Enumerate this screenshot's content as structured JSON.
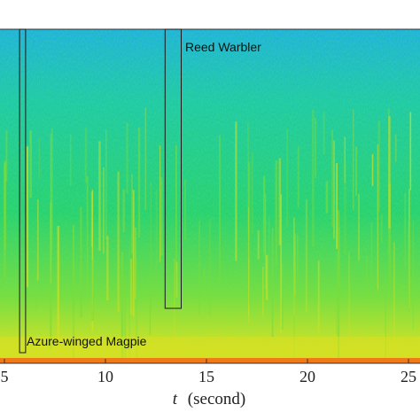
{
  "chart_data": {
    "type": "heatmap",
    "title": "",
    "xlabel": {
      "symbol": "t",
      "unit": "(second)"
    },
    "ylabel": "",
    "xlim": [
      5,
      25.8
    ],
    "xticks": [
      5,
      10,
      15,
      20,
      25
    ],
    "xtick_labels": [
      "5",
      "10",
      "15",
      "20",
      "25"
    ],
    "colors": {
      "high_band": "#1eb0e0",
      "upper_mid": "#1ec8a8",
      "mid": "#28d070",
      "lower_mid": "#7adc3c",
      "bottom_energy": "#d8e020",
      "bottom_edge": "#f07a18",
      "box_stroke": "#1a1a1a"
    },
    "annotations": [
      {
        "label": "Azure-winged Magpie",
        "t_start": 5.75,
        "t_end": 6.05
      },
      {
        "label": "Reed Warbler",
        "t_start": 12.95,
        "t_end": 13.75
      }
    ]
  }
}
